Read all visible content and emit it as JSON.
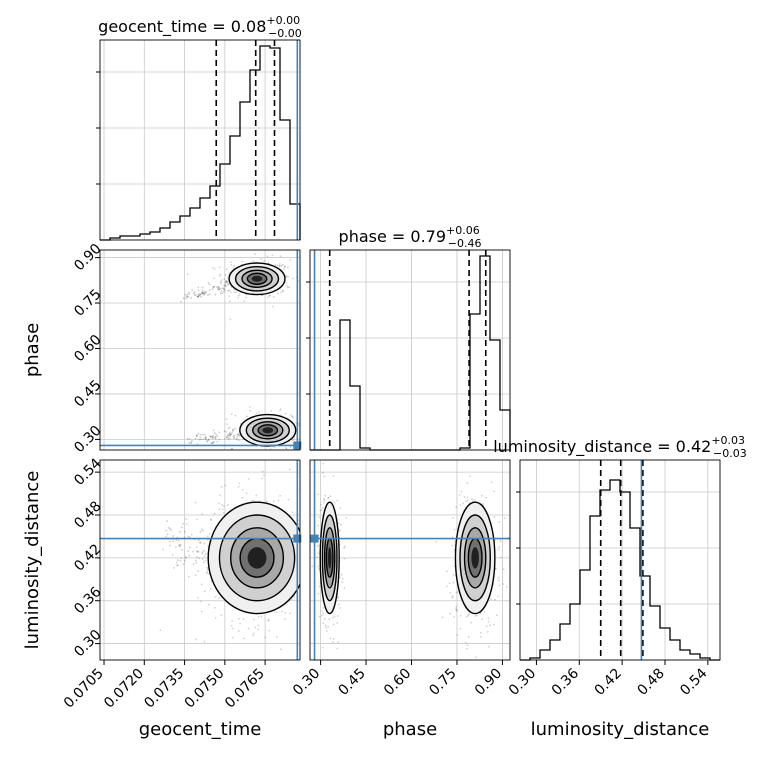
{
  "chart_data": {
    "type": "corner",
    "grid": true,
    "colors": {
      "truth": "#4682b4",
      "hist": "#000000",
      "quantile": "#000000",
      "grid": "#c8c8c8",
      "density": "#000000"
    },
    "parameters": [
      {
        "name": "geocent_time",
        "xlabel": "geocent_time",
        "ylabel": "",
        "range": [
          0.07035,
          0.0778
        ],
        "ticks": [
          0.0705,
          0.072,
          0.0735,
          0.075,
          0.0765
        ],
        "tick_labels": [
          "0.0705",
          "0.0720",
          "0.0735",
          "0.0750",
          "0.0765"
        ],
        "title_main": "geocent_time = 0.08",
        "title_plus": "+0.00",
        "title_minus": "−0.00",
        "quantiles": [
          0.07468,
          0.07615,
          0.07685
        ],
        "truth": 0.0777,
        "histogram": [
          0,
          0.01,
          0.02,
          0.02,
          0.03,
          0.04,
          0.06,
          0.09,
          0.12,
          0.16,
          0.21,
          0.27,
          0.38,
          0.52,
          0.69,
          0.85,
          0.97,
          0.96,
          0.6,
          0.18
        ]
      },
      {
        "name": "phase",
        "xlabel": "phase",
        "ylabel": "phase",
        "range": [
          0.265,
          0.925
        ],
        "ticks": [
          0.3,
          0.45,
          0.6,
          0.75,
          0.9
        ],
        "tick_labels": [
          "0.30",
          "0.45",
          "0.60",
          "0.75",
          "0.90"
        ],
        "title_main": "phase = 0.79",
        "title_plus": "+0.06",
        "title_minus": "−0.46",
        "quantiles": [
          0.33,
          0.79,
          0.845
        ],
        "truth": 0.28,
        "histogram": [
          0,
          0,
          0,
          0.65,
          0.32,
          0.01,
          0,
          0,
          0,
          0,
          0,
          0,
          0,
          0,
          0,
          0.01,
          0.68,
          0.97,
          0.55,
          0.2
        ]
      },
      {
        "name": "luminosity_distance",
        "xlabel": "luminosity_distance",
        "ylabel": "luminosity_distance",
        "range": [
          0.277,
          0.557
        ],
        "ticks": [
          0.3,
          0.36,
          0.42,
          0.48,
          0.54
        ],
        "tick_labels": [
          "0.30",
          "0.36",
          "0.42",
          "0.48",
          "0.54"
        ],
        "title_main": "luminosity_distance = 0.42",
        "title_plus": "+0.03",
        "title_minus": "−0.03",
        "quantiles": [
          0.39,
          0.418,
          0.449
        ],
        "truth": 0.447,
        "histogram": [
          0,
          0.01,
          0.05,
          0.1,
          0.18,
          0.28,
          0.45,
          0.72,
          0.85,
          0.9,
          0.84,
          0.66,
          0.42,
          0.27,
          0.16,
          0.1,
          0.05,
          0.03,
          0.01,
          0
        ]
      }
    ],
    "pairs": [
      {
        "x": "geocent_time",
        "y": "phase",
        "modes": [
          {
            "cx": 0.0762,
            "cy": 0.83,
            "sx": 0.0004,
            "sy": 0.02,
            "weight": 0.45,
            "tail": [
              0.0733,
              0.765
            ]
          },
          {
            "cx": 0.0766,
            "cy": 0.33,
            "sx": 0.0004,
            "sy": 0.02,
            "weight": 0.25,
            "tail": [
              0.0738,
              0.3
            ]
          }
        ]
      },
      {
        "x": "geocent_time",
        "y": "luminosity_distance",
        "modes": [
          {
            "cx": 0.0762,
            "cy": 0.42,
            "sx": 0.0007,
            "sy": 0.03,
            "weight": 0.6,
            "tail": [
              0.0728,
              0.445
            ]
          }
        ]
      },
      {
        "x": "phase",
        "y": "luminosity_distance",
        "modes": [
          {
            "cx": 0.33,
            "cy": 0.42,
            "sx": 0.012,
            "sy": 0.03,
            "weight": 0.35,
            "tail": null
          },
          {
            "cx": 0.81,
            "cy": 0.42,
            "sx": 0.025,
            "sy": 0.03,
            "weight": 0.45,
            "tail": null
          }
        ]
      }
    ]
  }
}
